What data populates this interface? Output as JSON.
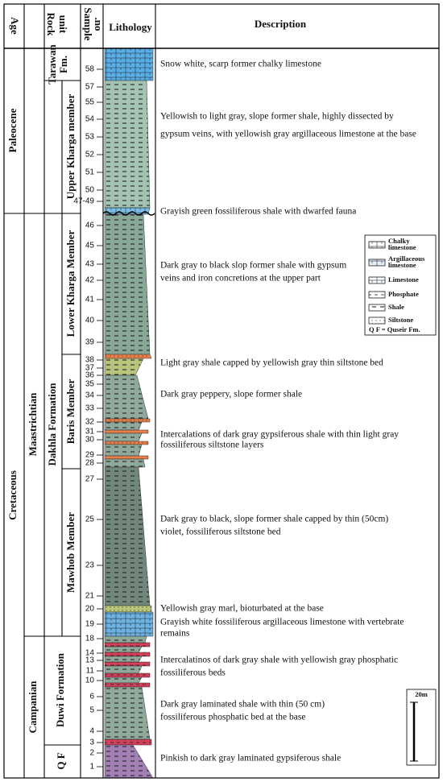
{
  "header": {
    "age": "Age",
    "rock_unit": [
      "Rock",
      "unit"
    ],
    "sample_no": [
      "Sample",
      ".no"
    ],
    "lithology": "Lithology",
    "description": "Description"
  },
  "ages": [
    "Paleocene",
    "Cretaceous"
  ],
  "stages": [
    "Maastrichtian",
    "Campanian"
  ],
  "units": [
    [
      "Tarawan",
      "Fm."
    ],
    [
      "Upper Kharga member"
    ],
    [
      "Lower Kharga Member"
    ],
    [
      "Baris Member"
    ],
    [
      "Mawhob Member"
    ],
    [
      "Dakhla  Formation"
    ],
    [
      "Duwi Formation"
    ],
    [
      "Q F"
    ]
  ],
  "samples": [
    "58",
    "57",
    "55",
    "54",
    "53",
    "52",
    "51",
    "50",
    "47-49",
    "46",
    "45",
    "43",
    "42",
    "41",
    "40",
    "39",
    "38",
    "37",
    "36",
    "35",
    "34",
    "33",
    "32",
    "31",
    "30",
    "29",
    "28",
    "27",
    "25",
    "23",
    "21",
    "20",
    "19",
    "18",
    "14",
    "13",
    "11",
    "10",
    "6",
    "5",
    "4",
    "3",
    "2",
    "1"
  ],
  "descriptions": [
    [
      "Snow white, scarp former chalky limestone"
    ],
    [
      "Yellowish to light gray, slope former shale, highly dissected by",
      "gypsum veins, with yellowish gray argillaceous limestone at the base"
    ],
    [
      "Grayish green fossiliferous shale with dwarfed fauna"
    ],
    [
      "Dark gray to black slop former shale with gypsum",
      "veins and iron concretions at the upper part"
    ],
    [
      "Light gray shale capped by yellowish gray thin siltstone bed"
    ],
    [
      "Dark gray peppery, slope former shale"
    ],
    [
      "Intercalations of dark gray gypsiferous shale with thin light gray",
      "fossiliferous siltstone layers"
    ],
    [
      "Dark gray to black, slope former shale capped by thin (50cm)",
      "violet, fossiliferous siltstone bed"
    ],
    [
      "Yellowish gray marl, bioturbated at the base"
    ],
    [
      "Grayish white fossiliferous argillaceous limestone with vertebrate",
      "remains"
    ],
    [
      "Intercalatinos of dark gray shale with yellowish gray phosphatic",
      "fossiliferous beds"
    ],
    [
      "Dark gray laminated shale with thin (50 cm)",
      "fossiliferous  phosphatic bed at the base"
    ],
    [
      "Pinkish to dark gray laminated gypsiferous shale"
    ]
  ],
  "legend": [
    [
      "Chalky",
      "limestone"
    ],
    [
      "Argillaceous",
      "limestone"
    ],
    [
      "Limestone"
    ],
    [
      "Phosphate"
    ],
    [
      "Shale"
    ],
    [
      "Siltstone"
    ]
  ],
  "legend_note": "Q F = Quseir Fm.",
  "scale": "20m"
}
